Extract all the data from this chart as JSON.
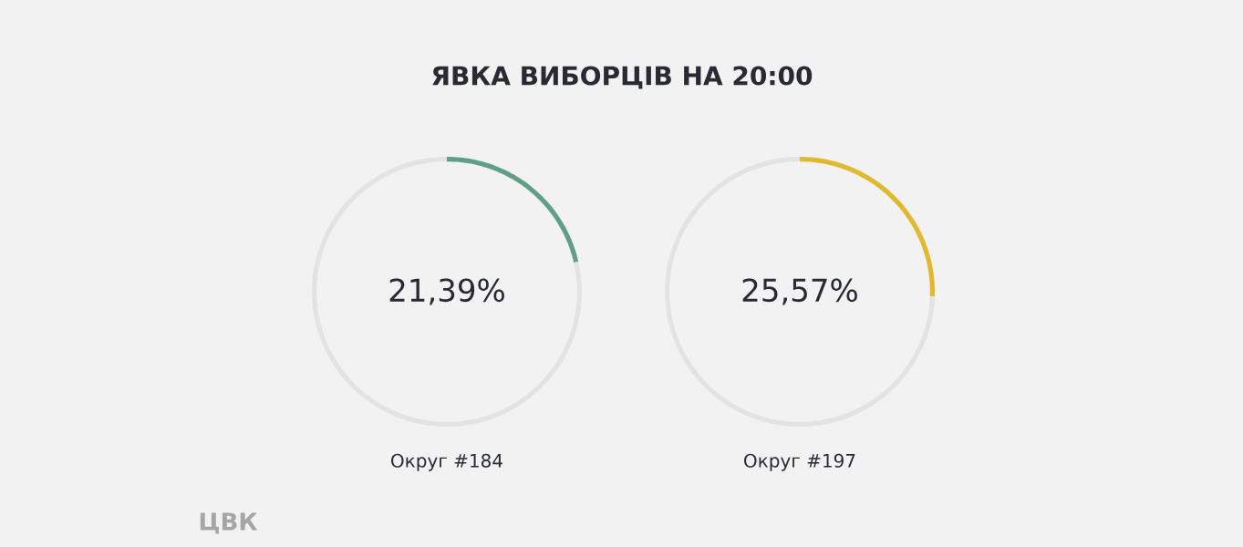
{
  "chart_data": [
    {
      "type": "donut",
      "title": "ЯВКА ВИБОРЦІВ НА 20:00",
      "xlabel": "Округ #184",
      "categories": [
        null,
        null
      ],
      "values": [
        21.39,
        78.61
      ],
      "colors": [
        "#5f9f86",
        "#e3e3e3"
      ],
      "value_labels": [
        "21,39%",
        null
      ],
      "annotations": [
        "ЦВК"
      ]
    },
    {
      "type": "donut",
      "xlabel": "Округ #197",
      "categories": [
        null,
        null
      ],
      "values": [
        25.57,
        74.43
      ],
      "colors": [
        "#e0b930",
        "#e3e3e3"
      ],
      "value_labels": [
        "25,57%",
        null
      ]
    }
  ]
}
